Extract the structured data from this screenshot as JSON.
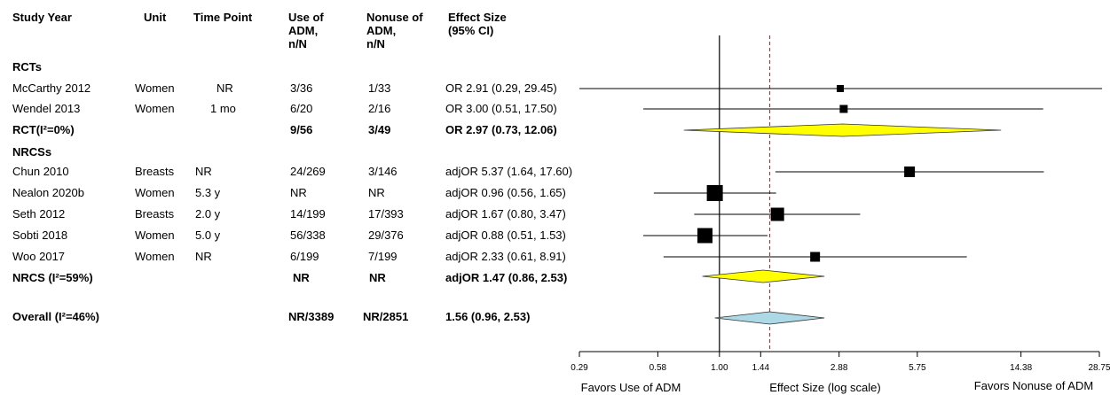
{
  "headers": {
    "study": "Study Year",
    "unit": "Unit",
    "time": "Time Point",
    "use_l1": "Use of",
    "use_l2": "ADM,",
    "use_l3": "n/N",
    "nonuse_l1": "Nonuse of",
    "nonuse_l2": "ADM,",
    "nonuse_l3": "n/N",
    "effect_l1": "Effect Size",
    "effect_l2": "(95% CI)"
  },
  "groups": {
    "rct": "RCTs",
    "nrcs": "NRCSs"
  },
  "rows": [
    {
      "study": "McCarthy 2012",
      "unit": "Women",
      "time": "NR",
      "use": "3/36",
      "nonuse": "1/33",
      "effect": "OR 2.91 (0.29, 29.45)",
      "bold": false
    },
    {
      "study": "Wendel 2013",
      "unit": "Women",
      "time": "1 mo",
      "use": "6/20",
      "nonuse": "2/16",
      "effect": "OR 3.00 (0.51, 17.50)",
      "bold": false
    },
    {
      "study": "RCT(I²=0%)",
      "unit": "",
      "time": "",
      "use": "9/56",
      "nonuse": "3/49",
      "effect": "OR 2.97 (0.73, 12.06)",
      "bold": true
    },
    {
      "study": "Chun 2010",
      "unit": "Breasts",
      "time": "NR",
      "use": "24/269",
      "nonuse": "3/146",
      "effect": "adjOR 5.37 (1.64, 17.60)",
      "bold": false
    },
    {
      "study": "Nealon 2020b",
      "unit": "Women",
      "time": "5.3 y",
      "use": "NR",
      "nonuse": "NR",
      "effect": "adjOR 0.96 (0.56,  1.65)",
      "bold": false
    },
    {
      "study": "Seth 2012",
      "unit": "Breasts",
      "time": "2.0 y",
      "use": "14/199",
      "nonuse": "17/393",
      "effect": "adjOR 1.67 (0.80,  3.47)",
      "bold": false
    },
    {
      "study": "Sobti 2018",
      "unit": "Women",
      "time": "5.0 y",
      "use": "56/338",
      "nonuse": "29/376",
      "effect": "adjOR 0.88 (0.51,  1.53)",
      "bold": false
    },
    {
      "study": "Woo 2017",
      "unit": "Women",
      "time": "NR",
      "use": "6/199",
      "nonuse": "7/199",
      "effect": "adjOR 2.33 (0.61,  8.91)",
      "bold": false
    },
    {
      "study": "NRCS (I²=59%)",
      "unit": "",
      "time": "",
      "use": "NR",
      "nonuse": "NR",
      "effect": "adjOR 1.47 (0.86,  2.53)",
      "bold": true
    },
    {
      "study": "Overall (I²=46%)",
      "unit": "",
      "time": "",
      "use": "NR/3389",
      "nonuse": "NR/2851",
      "effect": "1.56 (0.96,  2.53)",
      "bold": true
    }
  ],
  "chart_data": {
    "type": "forest",
    "xscale": "log",
    "xlim": [
      0.29,
      28.75
    ],
    "xticks": [
      0.29,
      0.58,
      1.0,
      1.44,
      2.88,
      5.75,
      14.38,
      28.75
    ],
    "xtick_labels": [
      "0.29",
      "0.58",
      "1.00",
      "1.44",
      "2.88",
      "5.75",
      "14.38",
      "28.75"
    ],
    "xlabel": "Effect Size (log scale)",
    "left_label": "Favors Use of ADM",
    "right_label": "Favors Nonuse of ADM",
    "null_line": 1.0,
    "reference_line": 1.56,
    "studies": [
      {
        "name": "McCarthy 2012",
        "est": 2.91,
        "lo": 0.29,
        "hi": 29.45,
        "box": 8
      },
      {
        "name": "Wendel 2013",
        "est": 3.0,
        "lo": 0.51,
        "hi": 17.5,
        "box": 9
      },
      {
        "name": "Chun 2010",
        "est": 5.37,
        "lo": 1.64,
        "hi": 17.6,
        "box": 12
      },
      {
        "name": "Nealon 2020b",
        "est": 0.96,
        "lo": 0.56,
        "hi": 1.65,
        "box": 18
      },
      {
        "name": "Seth 2012",
        "est": 1.67,
        "lo": 0.8,
        "hi": 3.47,
        "box": 15
      },
      {
        "name": "Sobti 2018",
        "est": 0.88,
        "lo": 0.51,
        "hi": 1.53,
        "box": 17
      },
      {
        "name": "Woo 2017",
        "est": 2.33,
        "lo": 0.61,
        "hi": 8.91,
        "box": 11
      }
    ],
    "summaries": [
      {
        "name": "RCT(I²=0%)",
        "est": 2.97,
        "lo": 0.73,
        "hi": 12.06,
        "color": "#ffff00"
      },
      {
        "name": "NRCS (I²=59%)",
        "est": 1.47,
        "lo": 0.86,
        "hi": 2.53,
        "color": "#ffff00"
      },
      {
        "name": "Overall (I²=46%)",
        "est": 1.56,
        "lo": 0.96,
        "hi": 2.53,
        "color": "#add8e6"
      }
    ]
  }
}
